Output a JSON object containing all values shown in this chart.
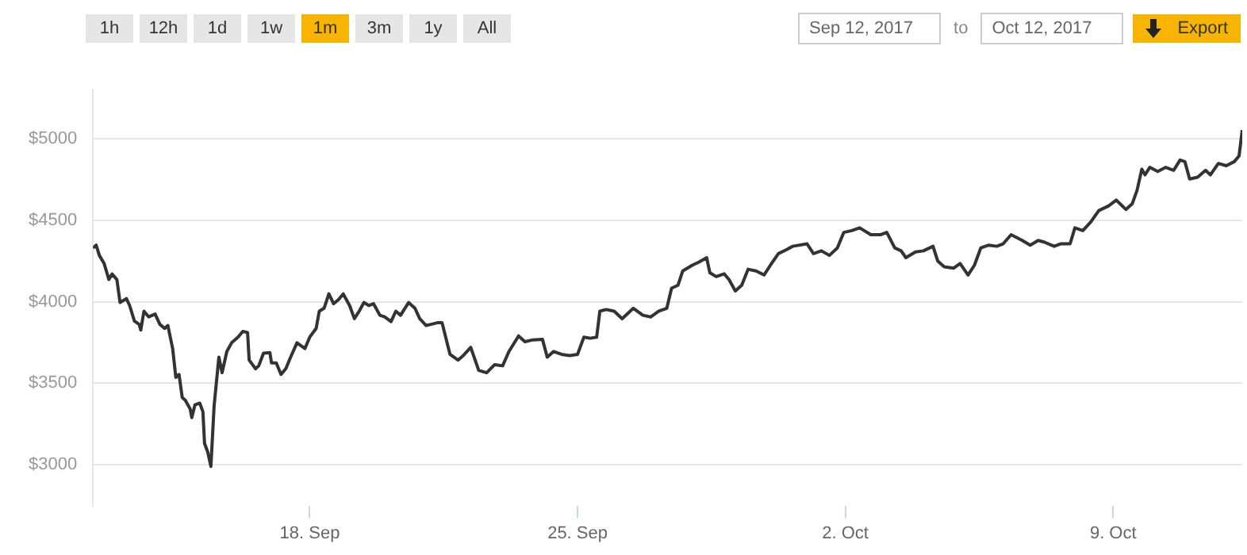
{
  "chart_data": {
    "type": "line",
    "annotations": [
      "1h",
      "12h",
      "1d",
      "1w",
      "1m",
      "3m",
      "1y",
      "All",
      "Sep 12, 2017",
      "to",
      "Oct 12, 2017",
      "Export"
    ],
    "x": [
      "2017-09-12T08:00",
      "2017-09-12T10:00",
      "2017-09-12T12:00",
      "2017-09-12T15:00",
      "2017-09-12T18:00",
      "2017-09-12T20:00",
      "2017-09-12T23:00",
      "2017-09-13T01:00",
      "2017-09-13T05:00",
      "2017-09-13T07:00",
      "2017-09-13T10:00",
      "2017-09-13T13:00",
      "2017-09-13T14:00",
      "2017-09-13T16:00",
      "2017-09-13T19:00",
      "2017-09-13T23:00",
      "2017-09-14T02:00",
      "2017-09-14T05:00",
      "2017-09-14T07:00",
      "2017-09-14T10:00",
      "2017-09-14T12:00",
      "2017-09-14T14:00",
      "2017-09-14T16:00",
      "2017-09-14T18:00",
      "2017-09-14T21:00",
      "2017-09-14T22:00",
      "2017-09-15T00:00",
      "2017-09-15T03:00",
      "2017-09-15T05:00",
      "2017-09-15T06:00",
      "2017-09-15T08:00",
      "2017-09-15T10:00",
      "2017-09-15T12:00",
      "2017-09-15T15:00",
      "2017-09-15T17:00",
      "2017-09-15T20:00",
      "2017-09-15T23:00",
      "2017-09-16T03:00",
      "2017-09-16T06:00",
      "2017-09-16T09:00",
      "2017-09-16T10:00",
      "2017-09-16T14:00",
      "2017-09-16T16:00",
      "2017-09-16T19:00",
      "2017-09-16T23:00",
      "2017-09-17T00:00",
      "2017-09-17T03:00",
      "2017-09-17T06:00",
      "2017-09-17T09:00",
      "2017-09-17T12:00",
      "2017-09-17T16:00",
      "2017-09-17T21:00",
      "2017-09-18T00:00",
      "2017-09-18T04:00",
      "2017-09-18T06:00",
      "2017-09-18T09:00",
      "2017-09-18T12:00",
      "2017-09-18T15:00",
      "2017-09-18T18:00",
      "2017-09-18T21:00",
      "2017-09-19T01:00",
      "2017-09-19T04:00",
      "2017-09-19T07:00",
      "2017-09-19T10:00",
      "2017-09-19T13:00",
      "2017-09-19T16:00",
      "2017-09-19T20:00",
      "2017-09-19T23:00",
      "2017-09-20T03:00",
      "2017-09-20T06:00",
      "2017-09-20T09:00",
      "2017-09-20T14:00",
      "2017-09-20T18:00",
      "2017-09-20T21:00",
      "2017-09-21T01:00",
      "2017-09-21T04:00",
      "2017-09-21T08:00",
      "2017-09-21T11:00",
      "2017-09-21T16:00",
      "2017-09-21T21:00",
      "2017-09-22T00:00",
      "2017-09-22T05:00",
      "2017-09-22T10:00",
      "2017-09-22T15:00",
      "2017-09-22T20:00",
      "2017-09-23T01:00",
      "2017-09-23T05:00",
      "2017-09-23T11:00",
      "2017-09-23T15:00",
      "2017-09-23T20:00",
      "2017-09-24T02:00",
      "2017-09-24T05:00",
      "2017-09-24T09:00",
      "2017-09-24T14:00",
      "2017-09-24T19:00",
      "2017-09-25T00:00",
      "2017-09-25T04:00",
      "2017-09-25T08:00",
      "2017-09-25T12:00",
      "2017-09-25T14:00",
      "2017-09-25T18:00",
      "2017-09-25T23:00",
      "2017-09-26T04:00",
      "2017-09-26T11:00",
      "2017-09-26T17:00",
      "2017-09-26T22:00",
      "2017-09-27T03:00",
      "2017-09-27T08:00",
      "2017-09-27T11:00",
      "2017-09-27T15:00",
      "2017-09-27T18:00",
      "2017-09-28T00:00",
      "2017-09-28T04:00",
      "2017-09-28T09:00",
      "2017-09-28T11:00",
      "2017-09-28T15:00",
      "2017-09-28T20:00",
      "2017-09-28T23:00",
      "2017-09-29T03:00",
      "2017-09-29T07:00",
      "2017-09-29T11:00",
      "2017-09-29T16:00",
      "2017-09-29T21:00",
      "2017-09-30T01:00",
      "2017-09-30T06:00",
      "2017-09-30T11:00",
      "2017-09-30T15:00",
      "2017-10-01T00:00",
      "2017-10-01T04:00",
      "2017-10-01T09:00",
      "2017-10-01T14:00",
      "2017-10-01T19:00",
      "2017-10-01T23:00",
      "2017-10-02T04:00",
      "2017-10-02T09:00",
      "2017-10-02T16:00",
      "2017-10-02T22:00",
      "2017-10-03T02:00",
      "2017-10-03T07:00",
      "2017-10-03T11:00",
      "2017-10-03T14:00",
      "2017-10-03T20:00",
      "2017-10-04T01:00",
      "2017-10-04T07:00",
      "2017-10-04T10:00",
      "2017-10-04T14:00",
      "2017-10-04T20:00",
      "2017-10-05T00:00",
      "2017-10-05T05:00",
      "2017-10-05T09:00",
      "2017-10-05T13:00",
      "2017-10-05T18:00",
      "2017-10-05T23:00",
      "2017-10-06T03:00",
      "2017-10-06T08:00",
      "2017-10-06T15:00",
      "2017-10-06T20:00",
      "2017-10-07T01:00",
      "2017-10-07T05:00",
      "2017-10-07T11:00",
      "2017-10-07T15:00",
      "2017-10-07T21:00",
      "2017-10-08T00:00",
      "2017-10-08T05:00",
      "2017-10-08T10:00",
      "2017-10-08T15:00",
      "2017-10-08T21:00",
      "2017-10-09T02:00",
      "2017-10-09T08:00",
      "2017-10-09T12:00",
      "2017-10-09T15:00",
      "2017-10-09T18:00",
      "2017-10-09T20:00",
      "2017-10-09T23:00",
      "2017-10-10T04:00",
      "2017-10-10T09:00",
      "2017-10-10T14:00",
      "2017-10-10T18:00",
      "2017-10-10T21:00",
      "2017-10-11T00:00",
      "2017-10-11T05:00",
      "2017-10-11T10:00",
      "2017-10-11T13:00",
      "2017-10-11T18:00",
      "2017-10-11T23:00",
      "2017-10-12T04:00",
      "2017-10-12T07:00",
      "2017-10-12T09:00"
    ],
    "series": [
      {
        "color": "#333333",
        "values": [
          4330,
          4347,
          4284,
          4235,
          4136,
          4170,
          4136,
          3995,
          4019,
          3977,
          3882,
          3861,
          3826,
          3942,
          3907,
          3924,
          3861,
          3836,
          3854,
          3713,
          3536,
          3554,
          3413,
          3395,
          3342,
          3289,
          3367,
          3378,
          3325,
          3131,
          3078,
          2990,
          3360,
          3660,
          3565,
          3695,
          3748,
          3783,
          3818,
          3811,
          3642,
          3589,
          3607,
          3684,
          3688,
          3625,
          3625,
          3554,
          3589,
          3660,
          3748,
          3713,
          3783,
          3836,
          3942,
          3960,
          4048,
          3988,
          4012,
          4048,
          3977,
          3896,
          3942,
          3995,
          3977,
          3988,
          3917,
          3907,
          3878,
          3942,
          3917,
          3995,
          3960,
          3896,
          3854,
          3861,
          3871,
          3871,
          3677,
          3642,
          3667,
          3720,
          3579,
          3564,
          3614,
          3607,
          3695,
          3790,
          3755,
          3766,
          3769,
          3660,
          3695,
          3677,
          3670,
          3677,
          3783,
          3776,
          3783,
          3942,
          3952,
          3942,
          3896,
          3960,
          3917,
          3907,
          3942,
          3960,
          4083,
          4101,
          4189,
          4224,
          4242,
          4270,
          4178,
          4154,
          4171,
          4136,
          4066,
          4101,
          4199,
          4189,
          4164,
          4224,
          4295,
          4319,
          4340,
          4355,
          4295,
          4312,
          4284,
          4330,
          4425,
          4436,
          4453,
          4411,
          4411,
          4425,
          4330,
          4312,
          4270,
          4305,
          4312,
          4340,
          4249,
          4214,
          4206,
          4234,
          4164,
          4224,
          4330,
          4347,
          4340,
          4355,
          4411,
          4376,
          4347,
          4376,
          4365,
          4340,
          4355,
          4355,
          4453,
          4436,
          4489,
          4559,
          4587,
          4623,
          4566,
          4601,
          4683,
          4813,
          4778,
          4824,
          4799,
          4824,
          4806,
          4869,
          4859,
          4753,
          4764,
          4806,
          4778,
          4848,
          4834,
          4859,
          4894,
          5053
        ]
      }
    ],
    "xlim": [
      "2017-09-12T08:00",
      "2017-10-12T09:00"
    ],
    "xticks": [
      {
        "value": "2017-09-18",
        "label": "18. Sep"
      },
      {
        "value": "2017-09-25",
        "label": "25. Sep"
      },
      {
        "value": "2017-10-02",
        "label": "2. Oct"
      },
      {
        "value": "2017-10-09",
        "label": "9. Oct"
      }
    ],
    "ylim": [
      2750,
      5300
    ],
    "yticks": [
      {
        "value": 3000,
        "label": "$3000"
      },
      {
        "value": 3500,
        "label": "$3500"
      },
      {
        "value": 4000,
        "label": "$4000"
      },
      {
        "value": 4500,
        "label": "$4500"
      },
      {
        "value": 5000,
        "label": "$5000"
      }
    ],
    "grid": "y",
    "legend": false,
    "marker": "none",
    "line_style": "solid"
  }
}
